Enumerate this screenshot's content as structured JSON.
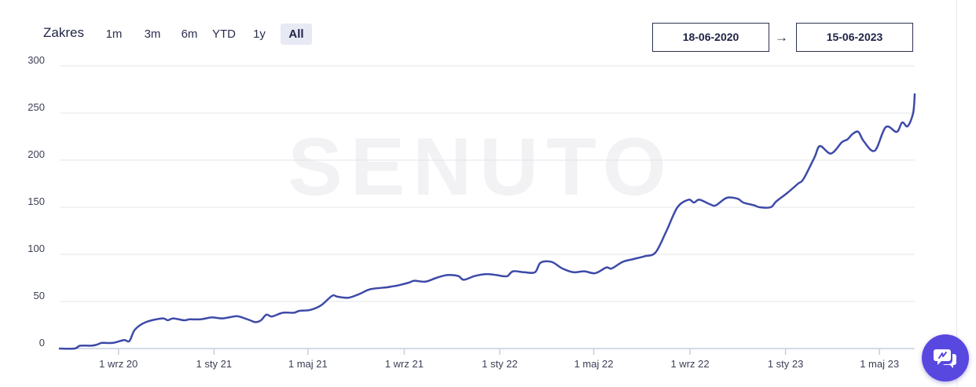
{
  "range_selector": {
    "label": "Zakres",
    "options": [
      "1m",
      "3m",
      "6m",
      "YTD",
      "1y",
      "All"
    ],
    "active": "All"
  },
  "date_range": {
    "start": "18-06-2020",
    "separator": "→",
    "end": "15-06-2023"
  },
  "watermark": "SENUTO",
  "colors": {
    "line": "#3d4aa8",
    "active_bg": "#e7e9f4",
    "chat_button": "#5848e0"
  },
  "chat_button_icon": "chat-bubbles-icon",
  "chart_data": {
    "type": "line",
    "title": "",
    "xlabel": "",
    "ylabel": "",
    "ylim": [
      0,
      300
    ],
    "y_ticks": [
      0,
      50,
      100,
      150,
      200,
      250,
      300
    ],
    "x_range": [
      "2020-06-18",
      "2023-06-15"
    ],
    "x_ticks": [
      {
        "date": "2020-09-01",
        "label": "1 wrz 20"
      },
      {
        "date": "2021-01-01",
        "label": "1 sty 21"
      },
      {
        "date": "2021-05-01",
        "label": "1 maj 21"
      },
      {
        "date": "2021-09-01",
        "label": "1 wrz 21"
      },
      {
        "date": "2022-01-01",
        "label": "1 sty 22"
      },
      {
        "date": "2022-05-01",
        "label": "1 maj 22"
      },
      {
        "date": "2022-09-01",
        "label": "1 wrz 22"
      },
      {
        "date": "2023-01-01",
        "label": "1 sty 23"
      },
      {
        "date": "2023-05-01",
        "label": "1 maj 23"
      }
    ],
    "grid": true,
    "legend": "none",
    "series": [
      {
        "points": [
          [
            "2020-06-18",
            0
          ],
          [
            "2020-07-07",
            0
          ],
          [
            "2020-07-14",
            3
          ],
          [
            "2020-07-28",
            3
          ],
          [
            "2020-08-04",
            4
          ],
          [
            "2020-08-11",
            6
          ],
          [
            "2020-08-25",
            6
          ],
          [
            "2020-09-08",
            9
          ],
          [
            "2020-09-15",
            8
          ],
          [
            "2020-09-22",
            20
          ],
          [
            "2020-10-06",
            28
          ],
          [
            "2020-10-27",
            32
          ],
          [
            "2020-11-03",
            30
          ],
          [
            "2020-11-10",
            32
          ],
          [
            "2020-11-24",
            30
          ],
          [
            "2020-12-01",
            31
          ],
          [
            "2020-12-15",
            31
          ],
          [
            "2020-12-29",
            33
          ],
          [
            "2021-01-12",
            32
          ],
          [
            "2021-01-26",
            34
          ],
          [
            "2021-02-02",
            34
          ],
          [
            "2021-02-16",
            30
          ],
          [
            "2021-02-23",
            28
          ],
          [
            "2021-03-02",
            30
          ],
          [
            "2021-03-09",
            36
          ],
          [
            "2021-03-16",
            34
          ],
          [
            "2021-03-30",
            38
          ],
          [
            "2021-04-13",
            38
          ],
          [
            "2021-04-20",
            40
          ],
          [
            "2021-05-04",
            41
          ],
          [
            "2021-05-18",
            46
          ],
          [
            "2021-06-01",
            56
          ],
          [
            "2021-06-08",
            55
          ],
          [
            "2021-06-22",
            54
          ],
          [
            "2021-07-06",
            58
          ],
          [
            "2021-07-20",
            63
          ],
          [
            "2021-08-10",
            65
          ],
          [
            "2021-08-17",
            66
          ],
          [
            "2021-08-24",
            67
          ],
          [
            "2021-09-07",
            70
          ],
          [
            "2021-09-14",
            72
          ],
          [
            "2021-09-28",
            71
          ],
          [
            "2021-10-12",
            75
          ],
          [
            "2021-10-26",
            78
          ],
          [
            "2021-11-09",
            77
          ],
          [
            "2021-11-16",
            73
          ],
          [
            "2021-11-30",
            77
          ],
          [
            "2021-12-14",
            79
          ],
          [
            "2021-12-28",
            78
          ],
          [
            "2022-01-04",
            77
          ],
          [
            "2022-01-11",
            77
          ],
          [
            "2022-01-18",
            82
          ],
          [
            "2022-02-01",
            81
          ],
          [
            "2022-02-15",
            81
          ],
          [
            "2022-02-22",
            91
          ],
          [
            "2022-03-08",
            92
          ],
          [
            "2022-03-22",
            85
          ],
          [
            "2022-04-05",
            81
          ],
          [
            "2022-04-19",
            82
          ],
          [
            "2022-05-03",
            80
          ],
          [
            "2022-05-17",
            86
          ],
          [
            "2022-05-24",
            85
          ],
          [
            "2022-06-07",
            92
          ],
          [
            "2022-06-21",
            95
          ],
          [
            "2022-07-05",
            98
          ],
          [
            "2022-07-19",
            102
          ],
          [
            "2022-08-02",
            125
          ],
          [
            "2022-08-16",
            150
          ],
          [
            "2022-08-30",
            158
          ],
          [
            "2022-09-06",
            155
          ],
          [
            "2022-09-13",
            158
          ],
          [
            "2022-09-27",
            153
          ],
          [
            "2022-10-04",
            152
          ],
          [
            "2022-10-18",
            160
          ],
          [
            "2022-11-01",
            159
          ],
          [
            "2022-11-08",
            155
          ],
          [
            "2022-11-22",
            152
          ],
          [
            "2022-11-29",
            150
          ],
          [
            "2022-12-13",
            150
          ],
          [
            "2022-12-20",
            156
          ],
          [
            "2023-01-03",
            165
          ],
          [
            "2023-01-17",
            175
          ],
          [
            "2023-01-24",
            180
          ],
          [
            "2023-02-07",
            203
          ],
          [
            "2023-02-14",
            215
          ],
          [
            "2023-02-28",
            207
          ],
          [
            "2023-03-14",
            219
          ],
          [
            "2023-03-21",
            222
          ],
          [
            "2023-03-28",
            228
          ],
          [
            "2023-04-04",
            230
          ],
          [
            "2023-04-11",
            220
          ],
          [
            "2023-04-25",
            210
          ],
          [
            "2023-05-09",
            235
          ],
          [
            "2023-05-23",
            230
          ],
          [
            "2023-05-30",
            240
          ],
          [
            "2023-06-06",
            236
          ],
          [
            "2023-06-13",
            250
          ],
          [
            "2023-06-15",
            270
          ]
        ]
      }
    ]
  }
}
